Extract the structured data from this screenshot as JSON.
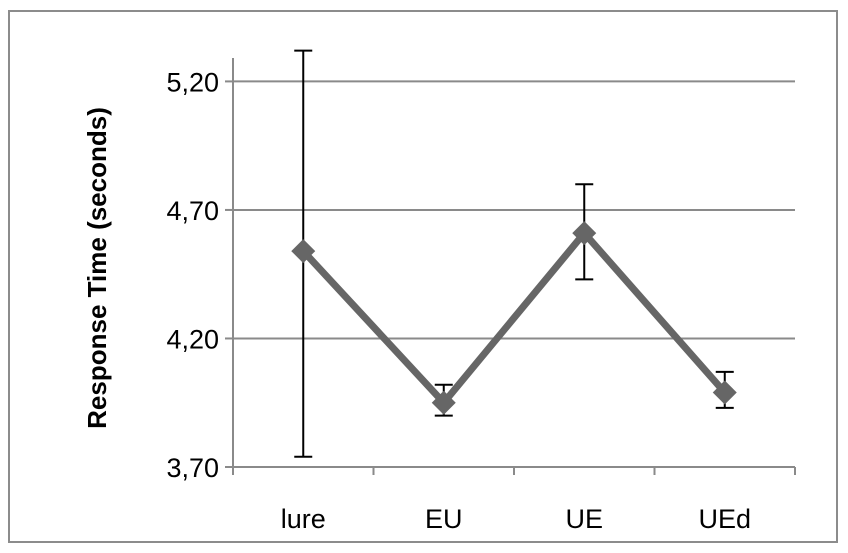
{
  "chart_data": {
    "type": "line",
    "categories": [
      "lure",
      "EU",
      "UE",
      "UEd"
    ],
    "series": [
      {
        "values": [
          4.54,
          3.95,
          4.61,
          3.99
        ],
        "error_low": [
          3.74,
          3.9,
          4.43,
          3.93
        ],
        "error_high": [
          5.32,
          4.02,
          4.8,
          4.07
        ],
        "color": "#666666",
        "marker": "diamond"
      }
    ],
    "ylabel": "Response Time (seconds)",
    "xlabel": "",
    "ylim": [
      3.7,
      5.4
    ],
    "yticks": [
      3.7,
      4.2,
      4.7,
      5.2
    ],
    "ytick_labels": [
      "3,70",
      "4,20",
      "4,70",
      "5,20"
    ],
    "grid": true,
    "legend": "none"
  }
}
